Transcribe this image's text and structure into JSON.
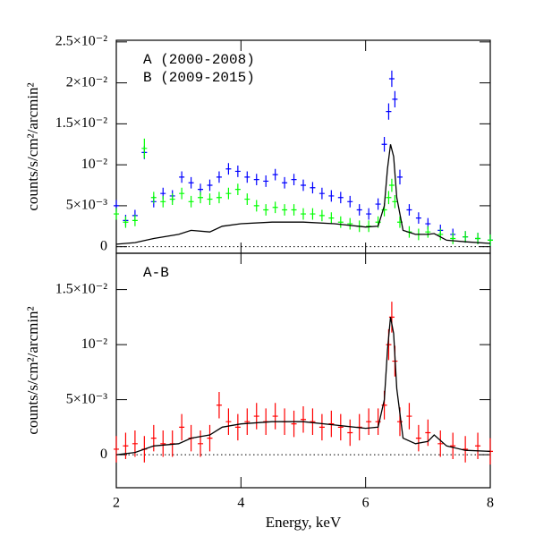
{
  "chart_data": [
    {
      "type": "scatter",
      "ylabel": "counts/s/cm²/arcmin²",
      "legend": "upper left",
      "xlim": [
        2,
        8
      ],
      "xticks": [
        2,
        4,
        6,
        8
      ],
      "ylim": [
        -0.0008,
        0.0252
      ],
      "yticks": [
        {
          "value": 0,
          "label": "0"
        },
        {
          "value": 0.005,
          "label": "5×10⁻³"
        },
        {
          "value": 0.01,
          "label": "10⁻²"
        },
        {
          "value": 0.015,
          "label": "1.5×10⁻²"
        },
        {
          "value": 0.02,
          "label": "2×10⁻²"
        },
        {
          "value": 0.025,
          "label": "2.5×10⁻²"
        }
      ],
      "series": [
        {
          "name": "A (2000-2008)",
          "color": "#0000ff",
          "kind": "errorbar",
          "x": [
            2.0,
            2.15,
            2.3,
            2.45,
            2.6,
            2.75,
            2.9,
            3.05,
            3.2,
            3.35,
            3.5,
            3.65,
            3.8,
            3.95,
            4.1,
            4.25,
            4.4,
            4.55,
            4.7,
            4.85,
            5.0,
            5.15,
            5.3,
            5.45,
            5.6,
            5.75,
            5.9,
            6.05,
            6.2,
            6.3,
            6.37,
            6.42,
            6.47,
            6.55,
            6.7,
            6.85,
            7.0,
            7.2,
            7.4,
            7.6,
            7.8,
            8.0
          ],
          "values": [
            0.005,
            0.0032,
            0.0038,
            0.0115,
            0.0055,
            0.0065,
            0.0062,
            0.0085,
            0.0078,
            0.007,
            0.0075,
            0.0085,
            0.0095,
            0.0092,
            0.0085,
            0.0082,
            0.008,
            0.0088,
            0.0078,
            0.0082,
            0.0075,
            0.0072,
            0.0065,
            0.0062,
            0.006,
            0.0055,
            0.0045,
            0.004,
            0.0052,
            0.0125,
            0.0165,
            0.0205,
            0.018,
            0.0085,
            0.0045,
            0.0035,
            0.0028,
            0.002,
            0.0015,
            0.0012,
            0.001,
            0.0008
          ],
          "errors": [
            0.0007,
            0.0007,
            0.0007,
            0.0008,
            0.0007,
            0.0007,
            0.0007,
            0.0007,
            0.0007,
            0.0007,
            0.0007,
            0.0007,
            0.0007,
            0.0007,
            0.0007,
            0.0007,
            0.0007,
            0.0007,
            0.0007,
            0.0007,
            0.0007,
            0.0007,
            0.0007,
            0.0007,
            0.0007,
            0.0007,
            0.0007,
            0.0007,
            0.0007,
            0.0009,
            0.001,
            0.001,
            0.001,
            0.0009,
            0.0007,
            0.0007,
            0.0007,
            0.0007,
            0.0007,
            0.0007,
            0.0007,
            0.0007
          ]
        },
        {
          "name": "B (2009-2015)",
          "color": "#00ff00",
          "kind": "errorbar",
          "x": [
            2.0,
            2.15,
            2.3,
            2.45,
            2.6,
            2.75,
            2.9,
            3.05,
            3.2,
            3.35,
            3.5,
            3.65,
            3.8,
            3.95,
            4.1,
            4.25,
            4.4,
            4.55,
            4.7,
            4.85,
            5.0,
            5.15,
            5.3,
            5.45,
            5.6,
            5.75,
            5.9,
            6.05,
            6.2,
            6.3,
            6.37,
            6.42,
            6.47,
            6.55,
            6.7,
            6.85,
            7.0,
            7.2,
            7.4,
            7.6,
            7.8,
            8.0
          ],
          "values": [
            0.004,
            0.003,
            0.0032,
            0.012,
            0.006,
            0.0055,
            0.0058,
            0.0065,
            0.0055,
            0.006,
            0.0058,
            0.006,
            0.0065,
            0.007,
            0.0058,
            0.005,
            0.0045,
            0.0048,
            0.0045,
            0.0045,
            0.004,
            0.004,
            0.0038,
            0.0035,
            0.003,
            0.0028,
            0.0025,
            0.0025,
            0.003,
            0.0045,
            0.006,
            0.0075,
            0.0055,
            0.003,
            0.0018,
            0.0015,
            0.0018,
            0.0015,
            0.001,
            0.0012,
            0.001,
            0.0008
          ],
          "errors": [
            0.0007,
            0.0007,
            0.0007,
            0.0012,
            0.0007,
            0.0007,
            0.0007,
            0.0007,
            0.0007,
            0.0007,
            0.0007,
            0.0007,
            0.0007,
            0.0007,
            0.0007,
            0.0007,
            0.0007,
            0.0007,
            0.0007,
            0.0007,
            0.0007,
            0.0007,
            0.0007,
            0.0007,
            0.0007,
            0.0007,
            0.0007,
            0.0007,
            0.0007,
            0.0008,
            0.0008,
            0.0008,
            0.0008,
            0.0007,
            0.0007,
            0.0007,
            0.0007,
            0.0007,
            0.0007,
            0.0007,
            0.0007,
            0.0007
          ]
        },
        {
          "color": "#000000",
          "kind": "line",
          "x": [
            2,
            2.3,
            2.6,
            3.0,
            3.2,
            3.5,
            3.7,
            4.0,
            4.5,
            5.0,
            5.5,
            6.0,
            6.2,
            6.3,
            6.35,
            6.4,
            6.45,
            6.5,
            6.6,
            6.8,
            7.0,
            7.1,
            7.3,
            7.6,
            8.0
          ],
          "values": [
            0.0003,
            0.0005,
            0.001,
            0.0015,
            0.002,
            0.0018,
            0.0025,
            0.0028,
            0.003,
            0.003,
            0.0028,
            0.0024,
            0.0025,
            0.005,
            0.0095,
            0.0125,
            0.011,
            0.006,
            0.002,
            0.0015,
            0.0015,
            0.0016,
            0.0008,
            0.0006,
            0.0004
          ]
        }
      ]
    },
    {
      "type": "scatter",
      "ylabel": "counts/s/cm²/arcmin²",
      "xlabel": "Energy, keV",
      "legend": "upper left",
      "xlim": [
        2,
        8
      ],
      "xticks": [
        2,
        4,
        6,
        8
      ],
      "ylim": [
        -0.003,
        0.0183
      ],
      "yticks": [
        {
          "value": 0,
          "label": "0"
        },
        {
          "value": 0.005,
          "label": "5×10⁻³"
        },
        {
          "value": 0.01,
          "label": "10⁻²"
        },
        {
          "value": 0.015,
          "label": "1.5×10⁻²"
        }
      ],
      "series": [
        {
          "name": "A-B",
          "color": "#ff0000",
          "kind": "errorbar",
          "x": [
            2.0,
            2.15,
            2.3,
            2.45,
            2.6,
            2.75,
            2.9,
            3.05,
            3.2,
            3.35,
            3.5,
            3.65,
            3.8,
            3.95,
            4.1,
            4.25,
            4.4,
            4.55,
            4.7,
            4.85,
            5.0,
            5.15,
            5.3,
            5.45,
            5.6,
            5.75,
            5.9,
            6.05,
            6.2,
            6.3,
            6.37,
            6.42,
            6.47,
            6.55,
            6.7,
            6.85,
            7.0,
            7.2,
            7.4,
            7.6,
            7.8,
            8.0
          ],
          "values": [
            0.0005,
            0.0008,
            0.001,
            0.0005,
            0.0015,
            0.001,
            0.001,
            0.0025,
            0.0015,
            0.001,
            0.0015,
            0.0045,
            0.003,
            0.0025,
            0.003,
            0.0035,
            0.003,
            0.0035,
            0.003,
            0.0028,
            0.0032,
            0.003,
            0.0025,
            0.0028,
            0.0025,
            0.002,
            0.0025,
            0.003,
            0.003,
            0.0045,
            0.01,
            0.0125,
            0.0085,
            0.003,
            0.0035,
            0.0015,
            0.002,
            0.001,
            0.0008,
            0.0005,
            0.0008,
            0.0003
          ],
          "errors": [
            0.0012,
            0.0012,
            0.0012,
            0.0012,
            0.0012,
            0.0012,
            0.0012,
            0.0012,
            0.0012,
            0.0012,
            0.0012,
            0.0012,
            0.0012,
            0.0012,
            0.0012,
            0.0012,
            0.0012,
            0.0012,
            0.0012,
            0.0012,
            0.0012,
            0.0012,
            0.0012,
            0.0012,
            0.0012,
            0.0012,
            0.0012,
            0.0012,
            0.0012,
            0.0013,
            0.0014,
            0.0014,
            0.0014,
            0.0013,
            0.0012,
            0.0012,
            0.0012,
            0.0012,
            0.0012,
            0.0012,
            0.0012,
            0.0012
          ]
        },
        {
          "color": "#000000",
          "kind": "line",
          "x": [
            2,
            2.3,
            2.6,
            3.0,
            3.2,
            3.5,
            3.7,
            4.0,
            4.5,
            5.0,
            5.5,
            6.0,
            6.2,
            6.3,
            6.35,
            6.4,
            6.45,
            6.5,
            6.6,
            6.8,
            7.0,
            7.1,
            7.3,
            7.6,
            8.0
          ],
          "values": [
            0,
            0.0002,
            0.0008,
            0.001,
            0.0015,
            0.0018,
            0.0025,
            0.0028,
            0.003,
            0.003,
            0.0027,
            0.0024,
            0.0025,
            0.005,
            0.0095,
            0.0125,
            0.011,
            0.006,
            0.0015,
            0.001,
            0.0012,
            0.0018,
            0.0008,
            0.0004,
            0.0003
          ]
        }
      ]
    }
  ]
}
